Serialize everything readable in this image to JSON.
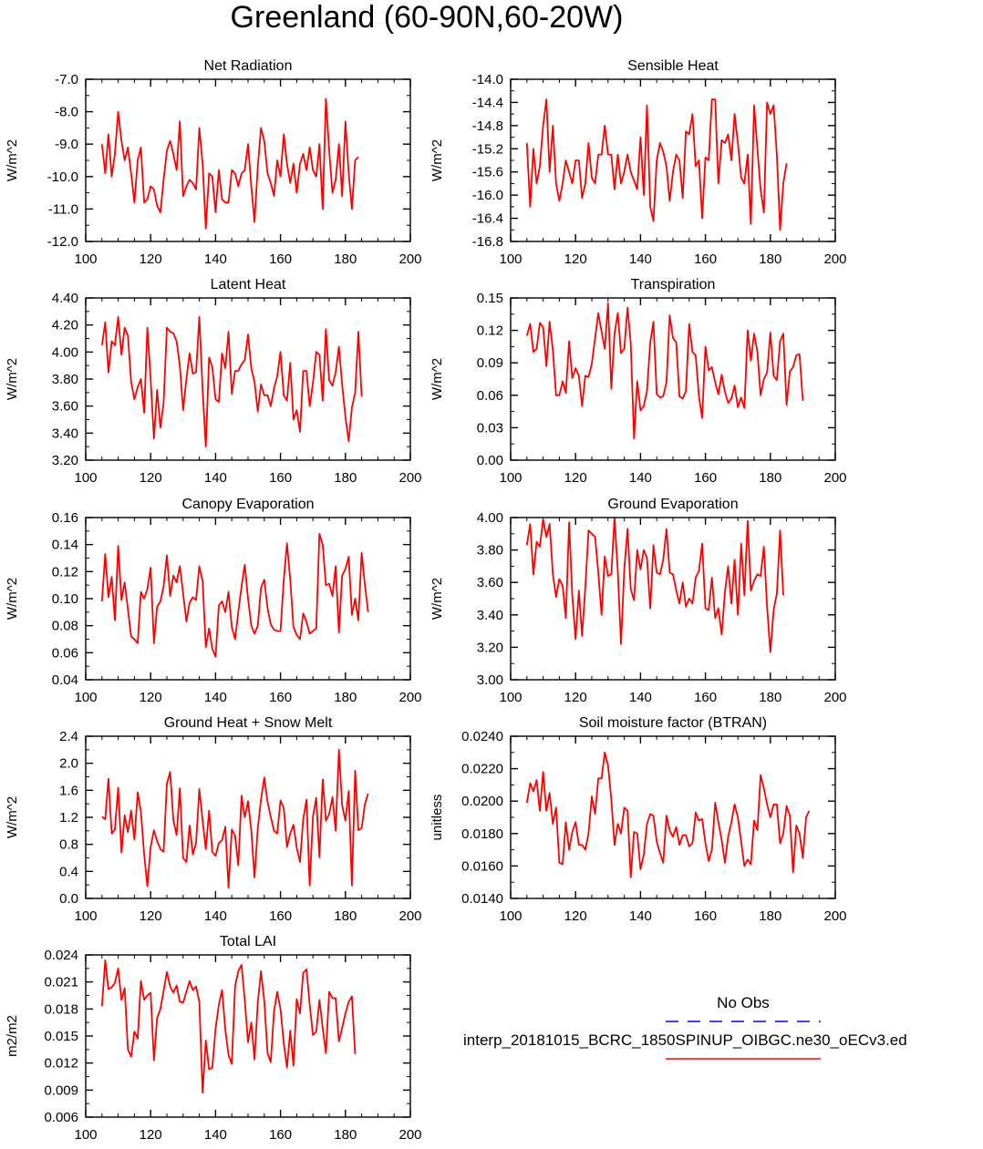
{
  "title": "Greenland (60-90N,60-20W)",
  "colors": {
    "model": "#ff0000",
    "obs": "#0000ff",
    "axis": "#000000",
    "background": "#ffffff"
  },
  "legend": {
    "obs_label": "No Obs",
    "model_label": "interp_20181015_BCRC_1850SPINUP_OIBGC.ne30_oECv3.ed"
  },
  "chart_data": [
    {
      "type": "line",
      "title": "Net Radiation",
      "ylabel": "W/m^2",
      "xlim": [
        100,
        200
      ],
      "ylim": [
        -12,
        -7
      ],
      "x_ticks": [
        100,
        120,
        140,
        160,
        180,
        200
      ],
      "y_ticks": [
        "-12.0",
        "-11.0",
        "-10.0",
        "-9.0",
        "-8.0",
        "-7.0"
      ],
      "x_start": 105,
      "series": [
        {
          "values": [
            -9.0,
            -9.9,
            -8.7,
            -10.0,
            -9.3,
            -8.0,
            -8.9,
            -9.5,
            -9.1,
            -9.9,
            -10.8,
            -9.5,
            -9.1,
            -10.8,
            -10.7,
            -10.3,
            -10.4,
            -10.9,
            -11.1,
            -10.1,
            -9.2,
            -8.9,
            -9.3,
            -9.8,
            -8.3,
            -10.6,
            -10.3,
            -10.1,
            -10.2,
            -10.4,
            -8.5,
            -9.6,
            -11.6,
            -9.9,
            -10.0,
            -11.1,
            -9.8,
            -10.7,
            -10.8,
            -10.8,
            -9.8,
            -9.9,
            -10.3,
            -9.9,
            -9.8,
            -9.0,
            -10.3,
            -11.4,
            -9.7,
            -8.5,
            -8.9,
            -9.9,
            -10.2,
            -10.6,
            -9.5,
            -10.0,
            -8.7,
            -9.6,
            -10.2,
            -9.6,
            -10.5,
            -9.6,
            -9.3,
            -9.8,
            -9.1,
            -9.8,
            -10.0,
            -9.0,
            -11.0,
            -7.6,
            -9.2,
            -10.5,
            -10.1,
            -9.0,
            -10.6,
            -8.3,
            -9.9,
            -11.0,
            -9.5,
            -9.4
          ]
        }
      ]
    },
    {
      "type": "line",
      "title": "Sensible Heat",
      "ylabel": "W/m^2",
      "xlim": [
        100,
        200
      ],
      "ylim": [
        -16.8,
        -14.0
      ],
      "x_ticks": [
        100,
        120,
        140,
        160,
        180,
        200
      ],
      "y_ticks": [
        "-16.8",
        "-16.4",
        "-16.0",
        "-15.6",
        "-15.2",
        "-14.8",
        "-14.4",
        "-14.0"
      ],
      "x_start": 105,
      "series": [
        {
          "values": [
            -15.1,
            -16.2,
            -15.2,
            -15.8,
            -15.5,
            -14.8,
            -14.35,
            -15.6,
            -14.8,
            -15.8,
            -16.1,
            -15.8,
            -15.4,
            -15.6,
            -15.8,
            -15.4,
            -15.4,
            -16.05,
            -15.8,
            -15.1,
            -15.7,
            -15.8,
            -15.3,
            -15.3,
            -14.8,
            -15.3,
            -15.3,
            -15.9,
            -15.3,
            -15.8,
            -15.6,
            -15.3,
            -15.6,
            -15.75,
            -15.9,
            -15.0,
            -16.0,
            -14.45,
            -16.2,
            -16.45,
            -15.4,
            -15.1,
            -15.25,
            -15.5,
            -16.1,
            -15.6,
            -15.3,
            -15.4,
            -16.05,
            -14.9,
            -14.95,
            -14.6,
            -15.5,
            -15.4,
            -16.4,
            -15.35,
            -15.4,
            -14.35,
            -14.35,
            -15.8,
            -15.05,
            -15.1,
            -14.95,
            -15.4,
            -14.6,
            -15.1,
            -15.7,
            -15.8,
            -15.3,
            -16.5,
            -14.45,
            -15.2,
            -15.9,
            -16.3,
            -14.4,
            -14.6,
            -14.45,
            -15.3,
            -16.6,
            -15.8,
            -15.45
          ]
        }
      ]
    },
    {
      "type": "line",
      "title": "Latent Heat",
      "ylabel": "W/m^2",
      "xlim": [
        100,
        200
      ],
      "ylim": [
        3.2,
        4.4
      ],
      "x_ticks": [
        100,
        120,
        140,
        160,
        180,
        200
      ],
      "y_ticks": [
        "3.20",
        "3.40",
        "3.60",
        "3.80",
        "4.00",
        "4.20",
        "4.40"
      ],
      "x_start": 105,
      "series": [
        {
          "values": [
            4.05,
            4.22,
            3.85,
            4.08,
            4.05,
            4.26,
            3.98,
            4.18,
            4.12,
            3.78,
            3.65,
            3.74,
            3.8,
            3.55,
            4.18,
            3.8,
            3.36,
            3.72,
            3.44,
            3.62,
            4.18,
            4.15,
            4.14,
            4.08,
            3.9,
            3.57,
            3.8,
            3.99,
            3.84,
            3.85,
            4.26,
            3.72,
            3.3,
            3.96,
            3.89,
            3.65,
            3.63,
            3.99,
            3.88,
            4.15,
            3.69,
            3.86,
            3.86,
            3.91,
            3.94,
            4.13,
            3.88,
            3.78,
            3.56,
            3.76,
            3.68,
            3.68,
            3.6,
            3.73,
            3.82,
            4.0,
            3.68,
            3.64,
            3.92,
            3.5,
            3.57,
            3.41,
            3.86,
            3.86,
            3.6,
            3.77,
            4.0,
            3.98,
            3.64,
            4.17,
            3.79,
            3.75,
            3.85,
            4.04,
            3.76,
            3.52,
            3.34,
            3.59,
            3.7,
            4.15,
            3.67
          ]
        }
      ]
    },
    {
      "type": "line",
      "title": "Transpiration",
      "ylabel": "W/m^2",
      "xlim": [
        100,
        200
      ],
      "ylim": [
        0.0,
        0.15
      ],
      "x_ticks": [
        100,
        120,
        140,
        160,
        180,
        200
      ],
      "y_ticks": [
        "0.00",
        "0.03",
        "0.06",
        "0.09",
        "0.12",
        "0.15"
      ],
      "x_start": 105,
      "series": [
        {
          "values": [
            0.115,
            0.126,
            0.1,
            0.103,
            0.127,
            0.123,
            0.087,
            0.128,
            0.102,
            0.06,
            0.06,
            0.073,
            0.062,
            0.11,
            0.076,
            0.085,
            0.078,
            0.05,
            0.078,
            0.077,
            0.089,
            0.113,
            0.136,
            0.119,
            0.103,
            0.145,
            0.066,
            0.117,
            0.136,
            0.099,
            0.103,
            0.141,
            0.108,
            0.02,
            0.073,
            0.046,
            0.05,
            0.064,
            0.109,
            0.128,
            0.061,
            0.058,
            0.059,
            0.072,
            0.134,
            0.113,
            0.109,
            0.059,
            0.057,
            0.064,
            0.126,
            0.1,
            0.097,
            0.059,
            0.039,
            0.105,
            0.083,
            0.086,
            0.072,
            0.061,
            0.079,
            0.063,
            0.053,
            0.057,
            0.069,
            0.049,
            0.058,
            0.048,
            0.12,
            0.092,
            0.117,
            0.1,
            0.06,
            0.075,
            0.081,
            0.118,
            0.078,
            0.074,
            0.11,
            0.117,
            0.051,
            0.082,
            0.086,
            0.097,
            0.098,
            0.055
          ]
        }
      ]
    },
    {
      "type": "line",
      "title": "Canopy Evaporation",
      "ylabel": "W/m^2",
      "xlim": [
        100,
        200
      ],
      "ylim": [
        0.04,
        0.16
      ],
      "x_ticks": [
        100,
        120,
        140,
        160,
        180,
        200
      ],
      "y_ticks": [
        "0.04",
        "0.06",
        "0.08",
        "0.10",
        "0.12",
        "0.14",
        "0.16"
      ],
      "x_start": 105,
      "series": [
        {
          "values": [
            0.098,
            0.133,
            0.101,
            0.116,
            0.084,
            0.139,
            0.099,
            0.112,
            0.092,
            0.072,
            0.07,
            0.067,
            0.105,
            0.1,
            0.107,
            0.123,
            0.067,
            0.094,
            0.098,
            0.109,
            0.132,
            0.102,
            0.117,
            0.112,
            0.124,
            0.104,
            0.083,
            0.097,
            0.101,
            0.099,
            0.124,
            0.113,
            0.064,
            0.078,
            0.063,
            0.057,
            0.095,
            0.098,
            0.09,
            0.105,
            0.079,
            0.07,
            0.09,
            0.109,
            0.125,
            0.1,
            0.08,
            0.074,
            0.08,
            0.108,
            0.114,
            0.093,
            0.081,
            0.077,
            0.076,
            0.076,
            0.114,
            0.141,
            0.114,
            0.079,
            0.073,
            0.07,
            0.089,
            0.083,
            0.074,
            0.076,
            0.078,
            0.148,
            0.14,
            0.11,
            0.111,
            0.102,
            0.124,
            0.075,
            0.117,
            0.122,
            0.131,
            0.088,
            0.1,
            0.084,
            0.134,
            0.11,
            0.09
          ]
        }
      ]
    },
    {
      "type": "line",
      "title": "Ground Evaporation",
      "ylabel": "W/m^2",
      "xlim": [
        100,
        200
      ],
      "ylim": [
        3.0,
        4.0
      ],
      "x_ticks": [
        100,
        120,
        140,
        160,
        180,
        200
      ],
      "y_ticks": [
        "3.00",
        "3.20",
        "3.40",
        "3.60",
        "3.80",
        "4.00"
      ],
      "x_start": 105,
      "series": [
        {
          "values": [
            3.83,
            3.96,
            3.65,
            3.85,
            3.82,
            3.99,
            3.88,
            3.96,
            3.65,
            3.51,
            3.62,
            3.58,
            3.38,
            3.97,
            3.52,
            3.25,
            3.55,
            3.27,
            3.57,
            3.92,
            3.9,
            3.88,
            3.66,
            3.4,
            3.76,
            3.64,
            3.65,
            4.0,
            3.67,
            3.22,
            3.68,
            3.93,
            3.56,
            3.49,
            3.8,
            3.68,
            3.8,
            3.75,
            3.44,
            3.83,
            3.66,
            3.65,
            3.74,
            3.93,
            3.66,
            3.65,
            3.55,
            3.47,
            3.6,
            3.45,
            3.5,
            3.47,
            3.63,
            3.67,
            3.84,
            3.44,
            3.43,
            3.63,
            3.38,
            3.44,
            3.28,
            3.54,
            3.7,
            3.47,
            3.74,
            3.4,
            3.84,
            3.52,
            3.98,
            3.55,
            3.61,
            3.65,
            3.64,
            3.82,
            3.45,
            3.17,
            3.43,
            3.53,
            3.92,
            3.52
          ]
        }
      ]
    },
    {
      "type": "line",
      "title": "Ground Heat + Snow Melt",
      "ylabel": "W/m^2",
      "xlim": [
        100,
        200
      ],
      "ylim": [
        0.0,
        2.4
      ],
      "x_ticks": [
        100,
        120,
        140,
        160,
        180,
        200
      ],
      "y_ticks": [
        "0.0",
        "0.4",
        "0.8",
        "1.2",
        "1.6",
        "2.0",
        "2.4"
      ],
      "x_start": 105,
      "series": [
        {
          "values": [
            1.21,
            1.17,
            1.77,
            0.96,
            1.02,
            1.64,
            0.68,
            1.23,
            0.98,
            1.3,
            0.87,
            1.57,
            1.29,
            0.65,
            0.18,
            0.76,
            1.01,
            0.85,
            0.73,
            0.69,
            1.7,
            1.87,
            1.16,
            0.94,
            1.63,
            0.6,
            0.54,
            1.08,
            0.65,
            0.82,
            1.62,
            1.15,
            0.73,
            1.3,
            0.69,
            0.63,
            0.82,
            0.86,
            1.06,
            0.16,
            1.02,
            0.93,
            0.49,
            1.52,
            1.2,
            1.44,
            1.0,
            0.31,
            1.04,
            1.46,
            1.79,
            1.43,
            1.21,
            1.0,
            0.96,
            1.45,
            1.34,
            0.76,
            0.96,
            1.09,
            0.75,
            0.54,
            1.17,
            1.46,
            0.19,
            1.21,
            1.49,
            0.61,
            1.76,
            1.15,
            1.25,
            1.5,
            1.0,
            2.2,
            1.38,
            1.15,
            1.59,
            0.19,
            1.89,
            1.01,
            1.04,
            1.4,
            1.55
          ]
        }
      ]
    },
    {
      "type": "line",
      "title": "Soil moisture factor (BTRAN)",
      "ylabel": "unitless",
      "xlim": [
        100,
        200
      ],
      "ylim": [
        0.014,
        0.024
      ],
      "x_ticks": [
        100,
        120,
        140,
        160,
        180,
        200
      ],
      "y_ticks": [
        "0.0140",
        "0.0160",
        "0.0180",
        "0.0200",
        "0.0220",
        "0.0240"
      ],
      "x_start": 105,
      "series": [
        {
          "values": [
            0.0199,
            0.0211,
            0.0206,
            0.0213,
            0.0194,
            0.0218,
            0.0194,
            0.0205,
            0.0186,
            0.0196,
            0.0162,
            0.0161,
            0.0187,
            0.017,
            0.0181,
            0.0187,
            0.0173,
            0.0173,
            0.017,
            0.018,
            0.0203,
            0.0192,
            0.0214,
            0.0214,
            0.023,
            0.0222,
            0.0201,
            0.0173,
            0.0186,
            0.018,
            0.0196,
            0.0194,
            0.0153,
            0.0181,
            0.018,
            0.0158,
            0.0167,
            0.0186,
            0.0192,
            0.0191,
            0.0175,
            0.0168,
            0.0162,
            0.0191,
            0.0182,
            0.0178,
            0.0184,
            0.0173,
            0.0179,
            0.0179,
            0.0172,
            0.0174,
            0.0193,
            0.0188,
            0.0189,
            0.0174,
            0.0163,
            0.017,
            0.0199,
            0.0187,
            0.0176,
            0.0162,
            0.0178,
            0.0187,
            0.0198,
            0.019,
            0.0175,
            0.016,
            0.0164,
            0.0161,
            0.0188,
            0.0182,
            0.0216,
            0.0208,
            0.0198,
            0.019,
            0.0198,
            0.0198,
            0.0174,
            0.018,
            0.0197,
            0.0191,
            0.0156,
            0.0185,
            0.018,
            0.0165,
            0.019,
            0.0194
          ]
        }
      ]
    },
    {
      "type": "line",
      "title": "Total LAI",
      "ylabel": "m2/m2",
      "xlim": [
        100,
        200
      ],
      "ylim": [
        0.006,
        0.024
      ],
      "x_ticks": [
        100,
        120,
        140,
        160,
        180,
        200
      ],
      "y_ticks": [
        "0.006",
        "0.009",
        "0.012",
        "0.015",
        "0.018",
        "0.021",
        "0.024"
      ],
      "x_start": 105,
      "series": [
        {
          "values": [
            0.0183,
            0.0234,
            0.0202,
            0.0204,
            0.0209,
            0.0225,
            0.019,
            0.0203,
            0.0135,
            0.0127,
            0.0155,
            0.0147,
            0.0211,
            0.019,
            0.0195,
            0.0198,
            0.0123,
            0.017,
            0.018,
            0.02,
            0.0221,
            0.0205,
            0.0198,
            0.0206,
            0.0188,
            0.0187,
            0.0199,
            0.0211,
            0.0201,
            0.0205,
            0.0188,
            0.0087,
            0.0145,
            0.0113,
            0.0115,
            0.0158,
            0.0185,
            0.0201,
            0.0157,
            0.0129,
            0.0119,
            0.0205,
            0.0222,
            0.0229,
            0.019,
            0.0143,
            0.0165,
            0.0124,
            0.0187,
            0.0222,
            0.0189,
            0.0131,
            0.0121,
            0.0177,
            0.0199,
            0.018,
            0.0142,
            0.0115,
            0.0156,
            0.0117,
            0.0191,
            0.0175,
            0.022,
            0.0224,
            0.0185,
            0.0151,
            0.0155,
            0.019,
            0.0159,
            0.0131,
            0.0199,
            0.0192,
            0.0192,
            0.0144,
            0.0159,
            0.0175,
            0.0188,
            0.0194,
            0.013
          ]
        }
      ]
    }
  ]
}
